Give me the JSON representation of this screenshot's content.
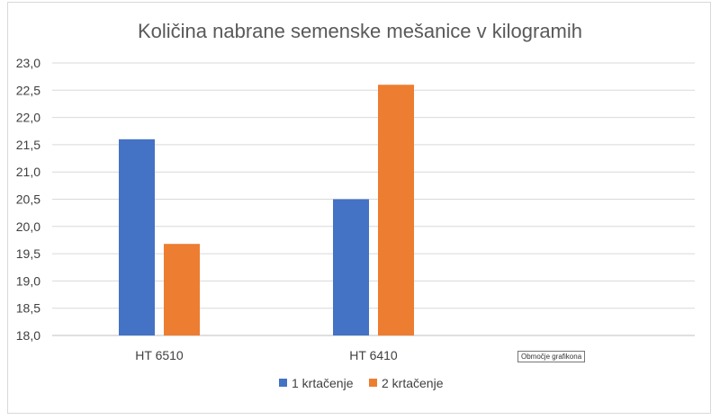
{
  "chart_data": {
    "type": "bar",
    "title": "Količina nabrane semenske mešanice v kilogramih",
    "categories": [
      "HT 6510",
      "HT 6410",
      ""
    ],
    "series": [
      {
        "name": "1 krtačenje",
        "color": "#4472c4",
        "values": [
          21.6,
          20.5,
          null
        ]
      },
      {
        "name": "2 krtačenje",
        "color": "#ed7d31",
        "values": [
          19.68,
          22.6,
          null
        ]
      }
    ],
    "ylim": [
      18.0,
      23.0
    ],
    "yticks": [
      "18,0",
      "18,5",
      "19,0",
      "19,5",
      "20,0",
      "20,5",
      "21,0",
      "21,5",
      "22,0",
      "22,5",
      "23,0"
    ],
    "grid": true,
    "legend_position": "bottom"
  },
  "tooltip": "Območje grafikona"
}
